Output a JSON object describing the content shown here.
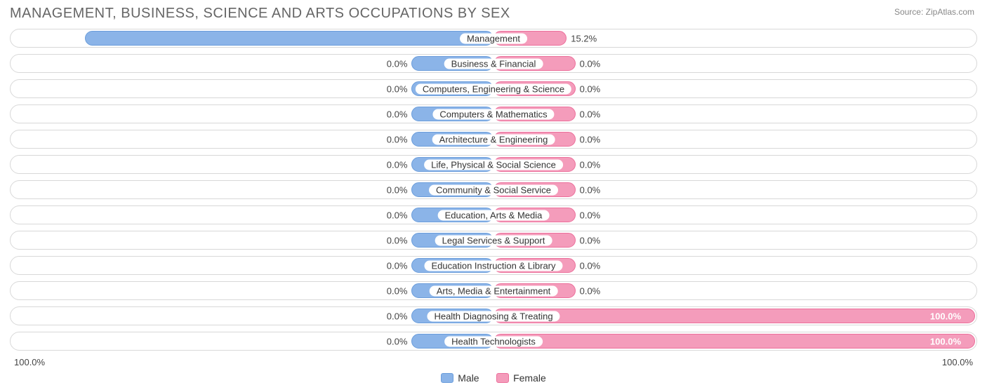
{
  "title": "MANAGEMENT, BUSINESS, SCIENCE AND ARTS OCCUPATIONS BY SEX",
  "source": "Source: ZipAtlas.com",
  "axis": {
    "left": "100.0%",
    "right": "100.0%"
  },
  "colors": {
    "male_fill": "#8bb4e8",
    "male_border": "#6b9ddb",
    "female_fill": "#f49cbb",
    "female_border": "#ec6f9b",
    "row_border": "#d8d8d8",
    "title_color": "#666666",
    "text_color": "#444444",
    "background": "#ffffff"
  },
  "legend": {
    "male": "Male",
    "female": "Female"
  },
  "default_bar_pct": 17,
  "rows": [
    {
      "category": "Management",
      "male": 84.8,
      "female": 15.2,
      "male_label": "84.8%",
      "female_label": "15.2%"
    },
    {
      "category": "Business & Financial",
      "male": 0.0,
      "female": 0.0,
      "male_label": "0.0%",
      "female_label": "0.0%"
    },
    {
      "category": "Computers, Engineering & Science",
      "male": 0.0,
      "female": 0.0,
      "male_label": "0.0%",
      "female_label": "0.0%"
    },
    {
      "category": "Computers & Mathematics",
      "male": 0.0,
      "female": 0.0,
      "male_label": "0.0%",
      "female_label": "0.0%"
    },
    {
      "category": "Architecture & Engineering",
      "male": 0.0,
      "female": 0.0,
      "male_label": "0.0%",
      "female_label": "0.0%"
    },
    {
      "category": "Life, Physical & Social Science",
      "male": 0.0,
      "female": 0.0,
      "male_label": "0.0%",
      "female_label": "0.0%"
    },
    {
      "category": "Community & Social Service",
      "male": 0.0,
      "female": 0.0,
      "male_label": "0.0%",
      "female_label": "0.0%"
    },
    {
      "category": "Education, Arts & Media",
      "male": 0.0,
      "female": 0.0,
      "male_label": "0.0%",
      "female_label": "0.0%"
    },
    {
      "category": "Legal Services & Support",
      "male": 0.0,
      "female": 0.0,
      "male_label": "0.0%",
      "female_label": "0.0%"
    },
    {
      "category": "Education Instruction & Library",
      "male": 0.0,
      "female": 0.0,
      "male_label": "0.0%",
      "female_label": "0.0%"
    },
    {
      "category": "Arts, Media & Entertainment",
      "male": 0.0,
      "female": 0.0,
      "male_label": "0.0%",
      "female_label": "0.0%"
    },
    {
      "category": "Health Diagnosing & Treating",
      "male": 0.0,
      "female": 100.0,
      "male_label": "0.0%",
      "female_label": "100.0%"
    },
    {
      "category": "Health Technologists",
      "male": 0.0,
      "female": 100.0,
      "male_label": "0.0%",
      "female_label": "100.0%"
    }
  ]
}
